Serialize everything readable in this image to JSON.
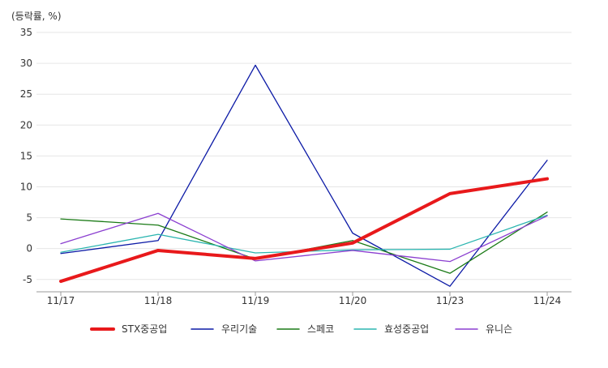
{
  "chart_data": {
    "type": "line",
    "unit_label": "(등락률, %)",
    "categories": [
      "11/17",
      "11/18",
      "11/19",
      "11/20",
      "11/23",
      "11/24"
    ],
    "ylim": [
      -7,
      35
    ],
    "yticks": [
      35,
      30,
      25,
      20,
      15,
      10,
      5,
      0,
      -5
    ],
    "grid": true,
    "legend_position": "bottom",
    "series": [
      {
        "name": "STX중공업",
        "color": "#e8191b",
        "emphasis": true,
        "values": [
          -5.3,
          -0.3,
          -1.6,
          0.9,
          8.9,
          11.3
        ]
      },
      {
        "name": "우리기술",
        "color": "#0c1aa6",
        "values": [
          -0.8,
          1.3,
          29.7,
          2.5,
          -6.1,
          14.3
        ]
      },
      {
        "name": "스페코",
        "color": "#1a7a16",
        "values": [
          4.8,
          3.8,
          -1.7,
          1.3,
          -4.0,
          5.9
        ]
      },
      {
        "name": "효성중공업",
        "color": "#2bb5b0",
        "values": [
          -0.6,
          2.3,
          -0.7,
          -0.2,
          -0.1,
          5.4
        ]
      },
      {
        "name": "유니슨",
        "color": "#8b3fd0",
        "values": [
          0.8,
          5.7,
          -2.0,
          -0.3,
          -2.1,
          5.3
        ]
      }
    ]
  }
}
